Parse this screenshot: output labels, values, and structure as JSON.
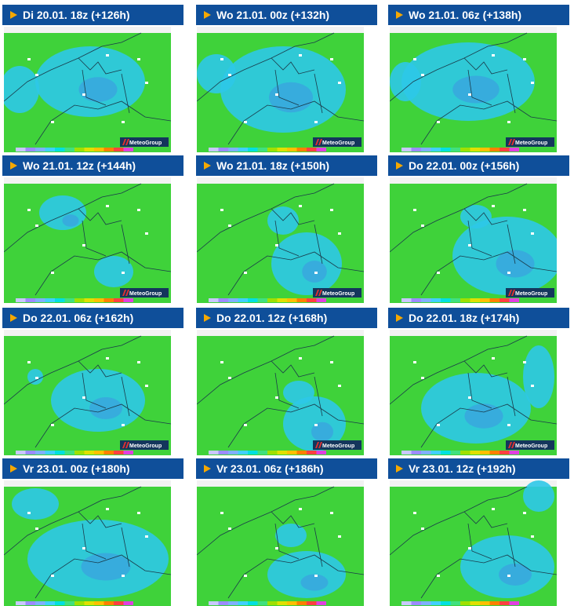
{
  "headers": [
    "Di 20.01. 18z (+126h)",
    "Wo 21.01. 00z (+132h)",
    "Wo 21.01. 06z (+138h)",
    "Wo 21.01. 12z (+144h)",
    "Wo 21.01. 18z (+150h)",
    "Do 22.01. 00z (+156h)",
    "Do 22.01. 06z (+162h)",
    "Do 22.01. 12z (+168h)",
    "Do 22.01. 18z (+174h)",
    "Vr 23.01. 00z (+180h)",
    "Vr 23.01. 06z (+186h)",
    "Vr 23.01. 12z (+192h)"
  ],
  "maps": [
    {
      "logo": "MeteoGroup"
    },
    {
      "logo": "MeteoGroup"
    },
    {
      "logo": "MeteoGroup"
    },
    {
      "logo": "MeteoGroup"
    },
    {
      "logo": "MeteoGroup"
    },
    {
      "logo": "MeteoGroup"
    },
    {
      "logo": "MeteoGroup"
    },
    {
      "logo": "MeteoGroup"
    },
    {
      "logo": "MeteoGroup"
    }
  ]
}
